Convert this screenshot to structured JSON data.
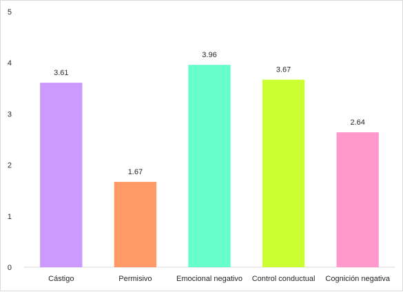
{
  "chart_data": {
    "type": "bar",
    "categories": [
      "Cástigo",
      "Permisivo",
      "Emocional negativo",
      "Control conductual",
      "Cognición negativa"
    ],
    "values": [
      3.61,
      1.67,
      3.96,
      3.67,
      2.64
    ],
    "data_labels": [
      "3.61",
      "1.67",
      "3.96",
      "3.67",
      "2.64"
    ],
    "colors": [
      "#cc99ff",
      "#ff9966",
      "#66ffcc",
      "#ccff33",
      "#ff99cc"
    ],
    "ylim": [
      0,
      5
    ],
    "yticks": [
      "0",
      "1",
      "2",
      "3",
      "4",
      "5"
    ],
    "grid": false,
    "legend": "none"
  }
}
